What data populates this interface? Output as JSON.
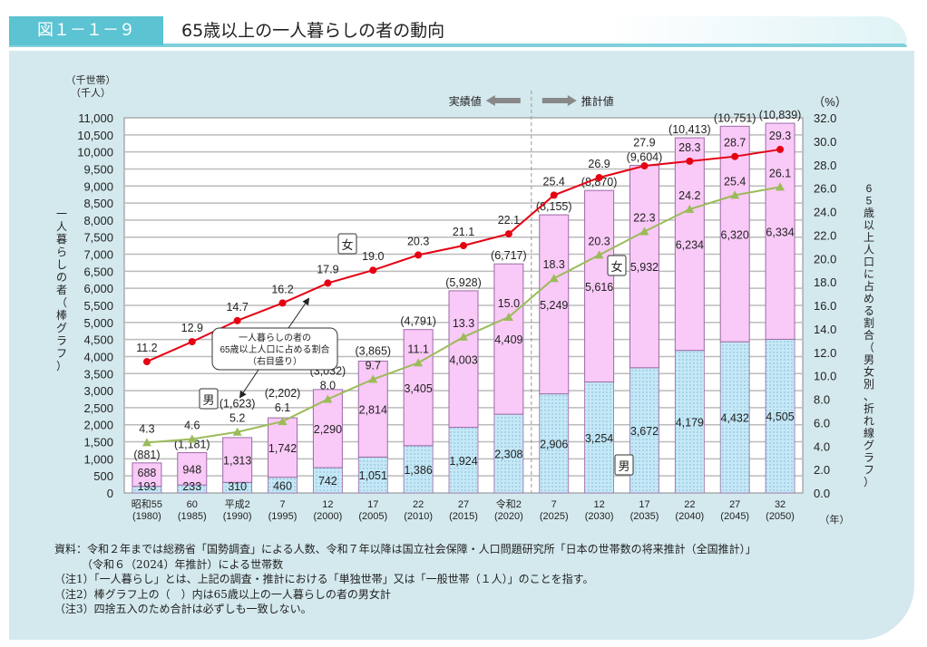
{
  "header": {
    "figure_number": "図１－１－９",
    "title": "65歳以上の一人暮らしの者の動向"
  },
  "chart_data": {
    "type": "bar+line",
    "left_unit_1": "（千世帯）",
    "left_unit_2": "（千人）",
    "right_unit": "（%）",
    "x_unit": "（年）",
    "ylabel_left": "一人暮らしの者（棒グラフ）",
    "ylabel_right": "65歳以上人口に占める割合（男女別、折れ線グラフ）",
    "ylim_left": [
      0,
      11000
    ],
    "ytick_step_left": 500,
    "ylim_right": [
      0,
      32
    ],
    "ytick_step_right": 2,
    "grid": true,
    "categories": [
      [
        "昭和55",
        "(1980)"
      ],
      [
        "60",
        "(1985)"
      ],
      [
        "平成2",
        "(1990)"
      ],
      [
        "7",
        "(1995)"
      ],
      [
        "12",
        "(2000)"
      ],
      [
        "17",
        "(2005)"
      ],
      [
        "22",
        "(2010)"
      ],
      [
        "27",
        "(2015)"
      ],
      [
        "令和2",
        "(2020)"
      ],
      [
        "7",
        "(2025)"
      ],
      [
        "12",
        "(2030)"
      ],
      [
        "17",
        "(2035)"
      ],
      [
        "22",
        "(2040)"
      ],
      [
        "27",
        "(2045)"
      ],
      [
        "32",
        "(2050)"
      ]
    ],
    "bars": {
      "male": [
        193,
        233,
        310,
        460,
        742,
        1051,
        1386,
        1924,
        2308,
        2906,
        3254,
        3672,
        4179,
        4432,
        4505
      ],
      "female": [
        688,
        948,
        1313,
        1742,
        2290,
        2814,
        3405,
        4003,
        4409,
        5249,
        5616,
        5932,
        6234,
        6320,
        6334
      ],
      "total": [
        881,
        1181,
        1623,
        2202,
        3032,
        3865,
        4791,
        5928,
        6717,
        8155,
        8870,
        9604,
        10413,
        10751,
        10839
      ]
    },
    "lines": {
      "female": [
        11.2,
        12.9,
        14.7,
        16.2,
        17.9,
        19.0,
        20.3,
        21.1,
        22.1,
        25.4,
        26.9,
        27.9,
        28.3,
        28.7,
        29.3
      ],
      "male": [
        4.3,
        4.6,
        5.2,
        6.1,
        8.0,
        9.7,
        11.1,
        13.3,
        15.0,
        18.3,
        20.3,
        22.3,
        24.2,
        25.4,
        26.1
      ]
    },
    "annotations": {
      "actual": "実績値",
      "projected": "推計値",
      "female": "女",
      "male": "男",
      "callout": [
        "一人暮らしの者の",
        "65歳以上人口に占める割合",
        "（右目盛り）"
      ]
    },
    "colors": {
      "female_bar": "#f9c9f7",
      "female_bar_border": "#9b6aa6",
      "male_bar": "#c6e8f6",
      "female_line": "#e60012",
      "male_line": "#9bbb59",
      "panel": "#d4e9ee",
      "header": "#5bc3d2"
    }
  },
  "notes": [
    "資料：令和２年までは総務省「国勢調査」による人数、令和７年以降は国立社会保障・人口問題研究所「日本の世帯数の将来推計（全国推計）」",
    "　　　（令和６（2024）年推計）による世帯数",
    "（注1）「一人暮らし」とは、上記の調査・推計における「単独世帯」又は「一般世帯（１人）」のことを指す。",
    "（注2）棒グラフ上の（　）内は65歳以上の一人暮らしの者の男女計",
    "（注3）四捨五入のため合計は必ずしも一致しない。"
  ]
}
